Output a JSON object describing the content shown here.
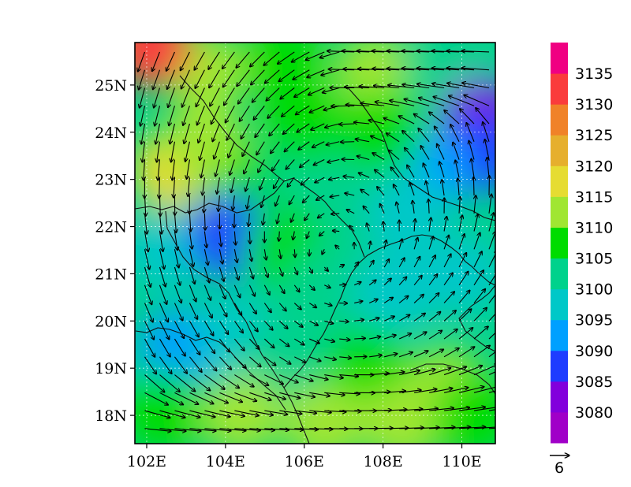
{
  "chart_data": {
    "type": "heatmap",
    "title": "",
    "xlabel": "",
    "ylabel": "",
    "xlim": [
      101.7,
      110.85
    ],
    "ylim": [
      17.4,
      25.9
    ],
    "x_ticks": [
      {
        "value": 102,
        "label": "102E"
      },
      {
        "value": 104,
        "label": "104E"
      },
      {
        "value": 106,
        "label": "106E"
      },
      {
        "value": 108,
        "label": "108E"
      },
      {
        "value": 110,
        "label": "110E"
      }
    ],
    "y_ticks": [
      {
        "value": 18,
        "label": "18N"
      },
      {
        "value": 19,
        "label": "19N"
      },
      {
        "value": 20,
        "label": "20N"
      },
      {
        "value": 21,
        "label": "21N"
      },
      {
        "value": 22,
        "label": "22N"
      },
      {
        "value": 23,
        "label": "23N"
      },
      {
        "value": 24,
        "label": "24N"
      },
      {
        "value": 25,
        "label": "25N"
      }
    ],
    "grid": true,
    "colorbar": {
      "placement": "right",
      "bins": [
        {
          "color": "#a000c8"
        },
        {
          "color": "#8200dc",
          "label": "3080"
        },
        {
          "color": "#1e3cff",
          "label": "3085"
        },
        {
          "color": "#00a0ff",
          "label": "3090"
        },
        {
          "color": "#00c8c8",
          "label": "3095"
        },
        {
          "color": "#00d28c",
          "label": "3100"
        },
        {
          "color": "#00dc00",
          "label": "3105"
        },
        {
          "color": "#a0e632",
          "label": "3110"
        },
        {
          "color": "#e6dc32",
          "label": "3115"
        },
        {
          "color": "#e6af2d",
          "label": "3120"
        },
        {
          "color": "#f08228",
          "label": "3125"
        },
        {
          "color": "#fa3c3c",
          "label": "3130"
        },
        {
          "color": "#f00082",
          "label": "3135"
        }
      ]
    },
    "field_patches": [
      {
        "lon": 102.0,
        "lat": 25.8,
        "color": "#00dc00"
      },
      {
        "lon": 103.5,
        "lat": 25.3,
        "color": "#a0e632"
      },
      {
        "lon": 105.5,
        "lat": 25.5,
        "color": "#00dc00"
      },
      {
        "lon": 107.8,
        "lat": 25.3,
        "color": "#a0e632"
      },
      {
        "lon": 109.5,
        "lat": 25.4,
        "color": "#00d28c"
      },
      {
        "lon": 110.5,
        "lat": 24.3,
        "color": "#8200dc"
      },
      {
        "lon": 110.5,
        "lat": 23.6,
        "color": "#1e3cff"
      },
      {
        "lon": 109.2,
        "lat": 23.2,
        "color": "#00a0ff"
      },
      {
        "lon": 102.6,
        "lat": 23.2,
        "color": "#e6dc32"
      },
      {
        "lon": 103.5,
        "lat": 23.8,
        "color": "#a0e632"
      },
      {
        "lon": 104.8,
        "lat": 22.8,
        "color": "#00dc00"
      },
      {
        "lon": 106.0,
        "lat": 23.3,
        "color": "#00d28c"
      },
      {
        "lon": 107.0,
        "lat": 22.0,
        "color": "#00d28c"
      },
      {
        "lon": 108.6,
        "lat": 22.3,
        "color": "#00c8c8"
      },
      {
        "lon": 102.5,
        "lat": 21.5,
        "color": "#00c8c8"
      },
      {
        "lon": 104.1,
        "lat": 21.8,
        "color": "#1e3cff"
      },
      {
        "lon": 105.5,
        "lat": 21.5,
        "color": "#00dc00"
      },
      {
        "lon": 106.5,
        "lat": 20.7,
        "color": "#00d28c"
      },
      {
        "lon": 108.3,
        "lat": 20.6,
        "color": "#00c8c8"
      },
      {
        "lon": 110.0,
        "lat": 21.0,
        "color": "#00c8c8"
      },
      {
        "lon": 102.8,
        "lat": 19.4,
        "color": "#00a0ff"
      },
      {
        "lon": 104.3,
        "lat": 19.7,
        "color": "#00c8c8"
      },
      {
        "lon": 105.5,
        "lat": 19.2,
        "color": "#00d28c"
      },
      {
        "lon": 107.6,
        "lat": 19.0,
        "color": "#00dc00"
      },
      {
        "lon": 109.6,
        "lat": 18.6,
        "color": "#a0e632"
      },
      {
        "lon": 102.4,
        "lat": 18.1,
        "color": "#00dc00"
      },
      {
        "lon": 104.4,
        "lat": 18.0,
        "color": "#a0e632"
      },
      {
        "lon": 106.5,
        "lat": 17.8,
        "color": "#a0e632"
      },
      {
        "lon": 108.5,
        "lat": 17.8,
        "color": "#a0e632"
      },
      {
        "lon": 110.3,
        "lat": 18.0,
        "color": "#00dc00"
      },
      {
        "lon": 102.1,
        "lat": 25.8,
        "color": "#fa3c3c"
      },
      {
        "lon": 106.0,
        "lat": 24.2,
        "color": "#00dc00"
      },
      {
        "lon": 108.0,
        "lat": 24.0,
        "color": "#00dc00"
      }
    ],
    "wind_reference": {
      "label": "6",
      "units_per_unit_length": 6
    }
  }
}
